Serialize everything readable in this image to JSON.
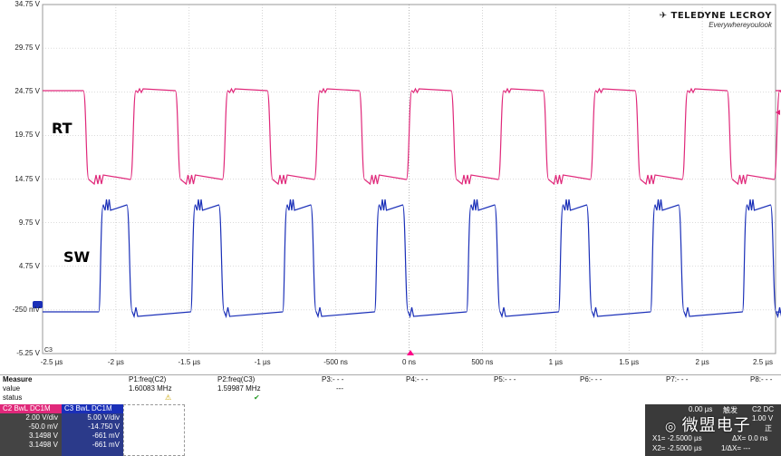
{
  "logo": {
    "brand": "TELEDYNE LECROY",
    "tagline": "Everywhereyoulook"
  },
  "y_labels": [
    "34.75 V",
    "29.75 V",
    "24.75 V",
    "19.75 V",
    "14.75 V",
    "9.75 V",
    "4.75 V",
    "-250 mV",
    "-5.25 V"
  ],
  "x_labels": [
    "-2.5 µs",
    "-2 µs",
    "-1.5 µs",
    "-1 µs",
    "-500 ns",
    "0 ns",
    "500 ns",
    "1 µs",
    "1.5 µs",
    "2 µs",
    "2.5 µs"
  ],
  "trace_labels": {
    "rt": "RT",
    "sw": "SW",
    "c3": "C3"
  },
  "colors": {
    "rt": "#e0287a",
    "sw": "#1a2fb8",
    "grid": "#b8b8b8"
  },
  "measure": {
    "header": "Measure",
    "row_value": "value",
    "row_status": "status",
    "params": [
      {
        "name": "P1:freq(C2)",
        "value": "1.60083 MHz",
        "status": "warning-icon"
      },
      {
        "name": "P2:freq(C3)",
        "value": "1.59987 MHz",
        "status": "check-icon"
      },
      {
        "name": "P3:- - -",
        "value": "---",
        "status": ""
      },
      {
        "name": "P4:- - -",
        "value": "",
        "status": ""
      },
      {
        "name": "P5:- - -",
        "value": "",
        "status": ""
      },
      {
        "name": "P6:- - -",
        "value": "",
        "status": ""
      },
      {
        "name": "P7:- - -",
        "value": "",
        "status": ""
      },
      {
        "name": "P8:- - -",
        "value": "",
        "status": ""
      }
    ]
  },
  "channels": [
    {
      "id": "C2",
      "tag1": "BwL",
      "tag2": "DC1M",
      "volts_div": "2.00 V/div",
      "offset": "-50.0 mV",
      "c1": "3.1498 V",
      "c2": "3.1498 V",
      "color": "#e0287a"
    },
    {
      "id": "C3",
      "tag1": "BwL",
      "tag2": "DC1M",
      "volts_div": "5.00 V/div",
      "offset": "-14.750 V",
      "c1": "-661 mV",
      "c2": "-661 mV",
      "color": "#1a2fb8"
    }
  ],
  "timebase": {
    "time_div": "0.00 µs",
    "mode": "触发",
    "mode2": "C2 DC",
    "level": "1.00 V",
    "slope": "正",
    "x1": "X1= -2.5000 µs",
    "dx": "ΔX= 0.0 ns",
    "x2": "X2= -2.5000 µs",
    "inv_dx": "1/ΔX= ---"
  },
  "watermark": "微盟电子"
}
